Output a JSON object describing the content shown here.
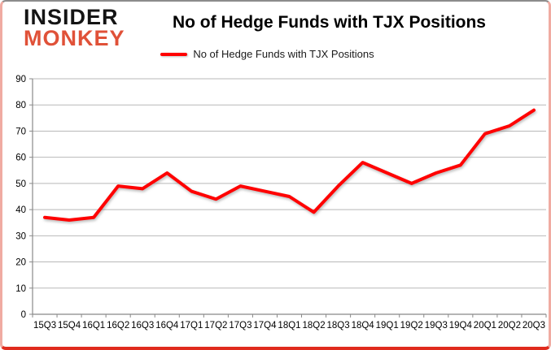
{
  "branding": {
    "logo_line1": "INSIDER",
    "logo_line2": "MONKEY",
    "logo_color1": "#141414",
    "logo_color2": "#e05138"
  },
  "header": {
    "title": "No of Hedge Funds with TJX Positions"
  },
  "legend": {
    "label": "No of Hedge Funds with TJX Positions",
    "line_color": "#ff0000"
  },
  "chart_data": {
    "type": "line",
    "title": "No of Hedge Funds with TJX Positions",
    "categories": [
      "15Q3",
      "15Q4",
      "16Q1",
      "16Q2",
      "16Q3",
      "16Q4",
      "17Q1",
      "17Q2",
      "17Q3",
      "17Q4",
      "18Q1",
      "18Q2",
      "18Q3",
      "18Q4",
      "19Q1",
      "19Q2",
      "19Q3",
      "19Q4",
      "20Q1",
      "20Q2",
      "20Q3"
    ],
    "series": [
      {
        "name": "No of Hedge Funds with TJX Positions",
        "color": "#ff0000",
        "values": [
          37,
          36,
          37,
          49,
          48,
          54,
          47,
          44,
          49,
          47,
          45,
          39,
          49,
          58,
          54,
          50,
          54,
          57,
          69,
          72,
          78
        ]
      }
    ],
    "xlabel": "",
    "ylabel": "",
    "ylim": [
      0,
      90
    ],
    "yticks": [
      0,
      10,
      20,
      30,
      40,
      50,
      60,
      70,
      80,
      90
    ],
    "grid": true,
    "gridline_color": "#b8b8b8",
    "axis_color": "#898989",
    "legend_position": "top"
  }
}
